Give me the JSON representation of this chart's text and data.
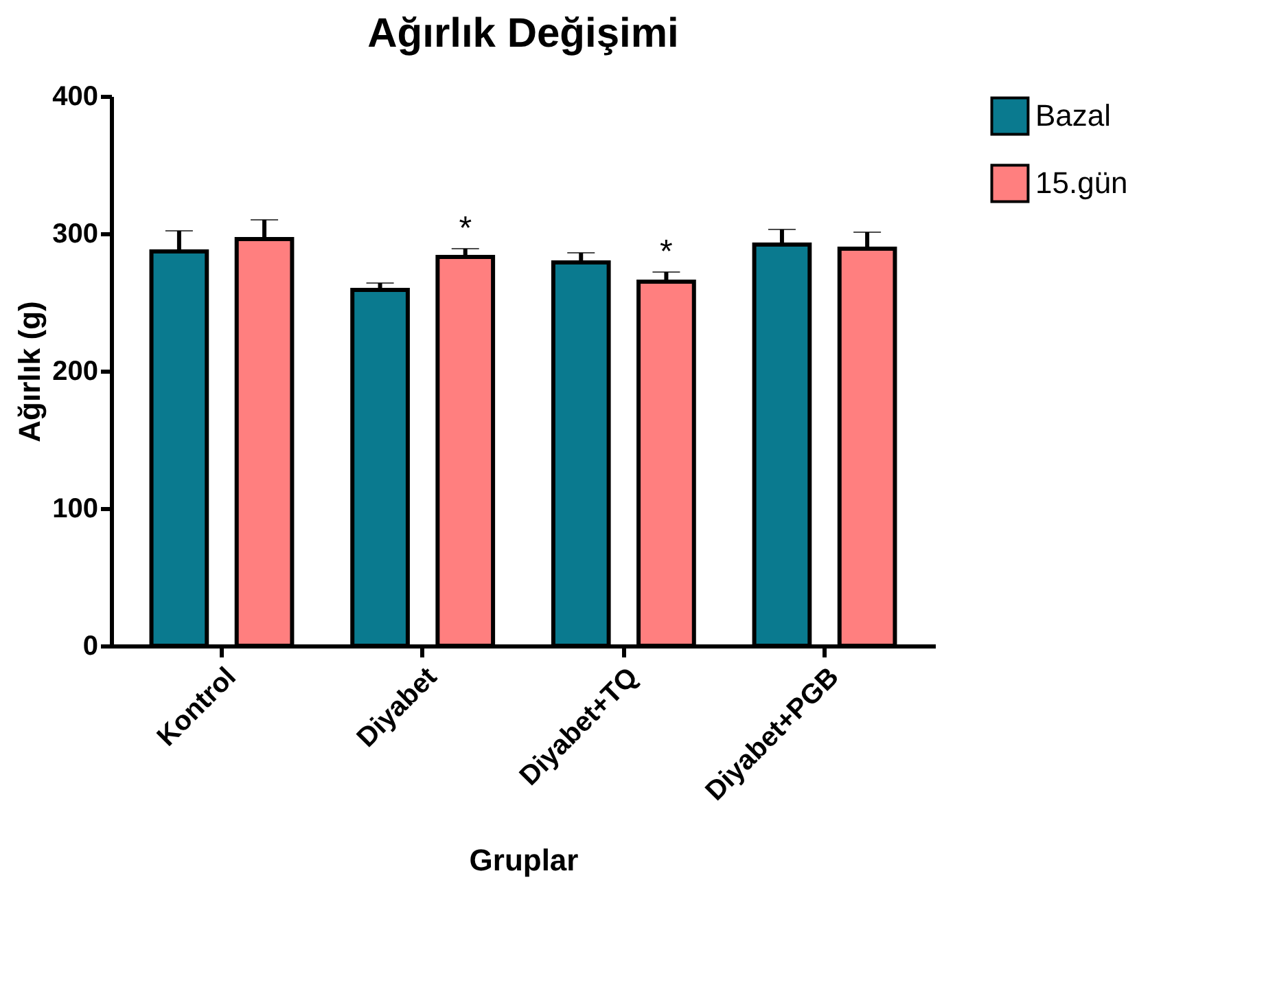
{
  "chart_data": {
    "type": "bar",
    "title": "Ağırlık Değişimi",
    "xlabel": "Gruplar",
    "ylabel": "Ağırlık (g)",
    "categories": [
      "Kontrol",
      "Diyabet",
      "Diyabet+TQ",
      "Diyabet+PGB"
    ],
    "series": [
      {
        "name": "Bazal",
        "color": "#0a7a8f",
        "values": [
          287,
          259,
          279,
          292
        ],
        "errors": [
          15,
          5,
          7,
          11
        ]
      },
      {
        "name": "15.gün",
        "color": "#ff7f7f",
        "values": [
          296,
          283,
          265,
          289
        ],
        "errors": [
          14,
          6,
          7,
          12
        ],
        "value_labels": [
          null,
          "*",
          "*",
          null
        ]
      }
    ],
    "ylim": [
      0,
      400
    ],
    "yticks": [
      0,
      100,
      200,
      300,
      400
    ],
    "grid": false,
    "legend": "top right"
  }
}
